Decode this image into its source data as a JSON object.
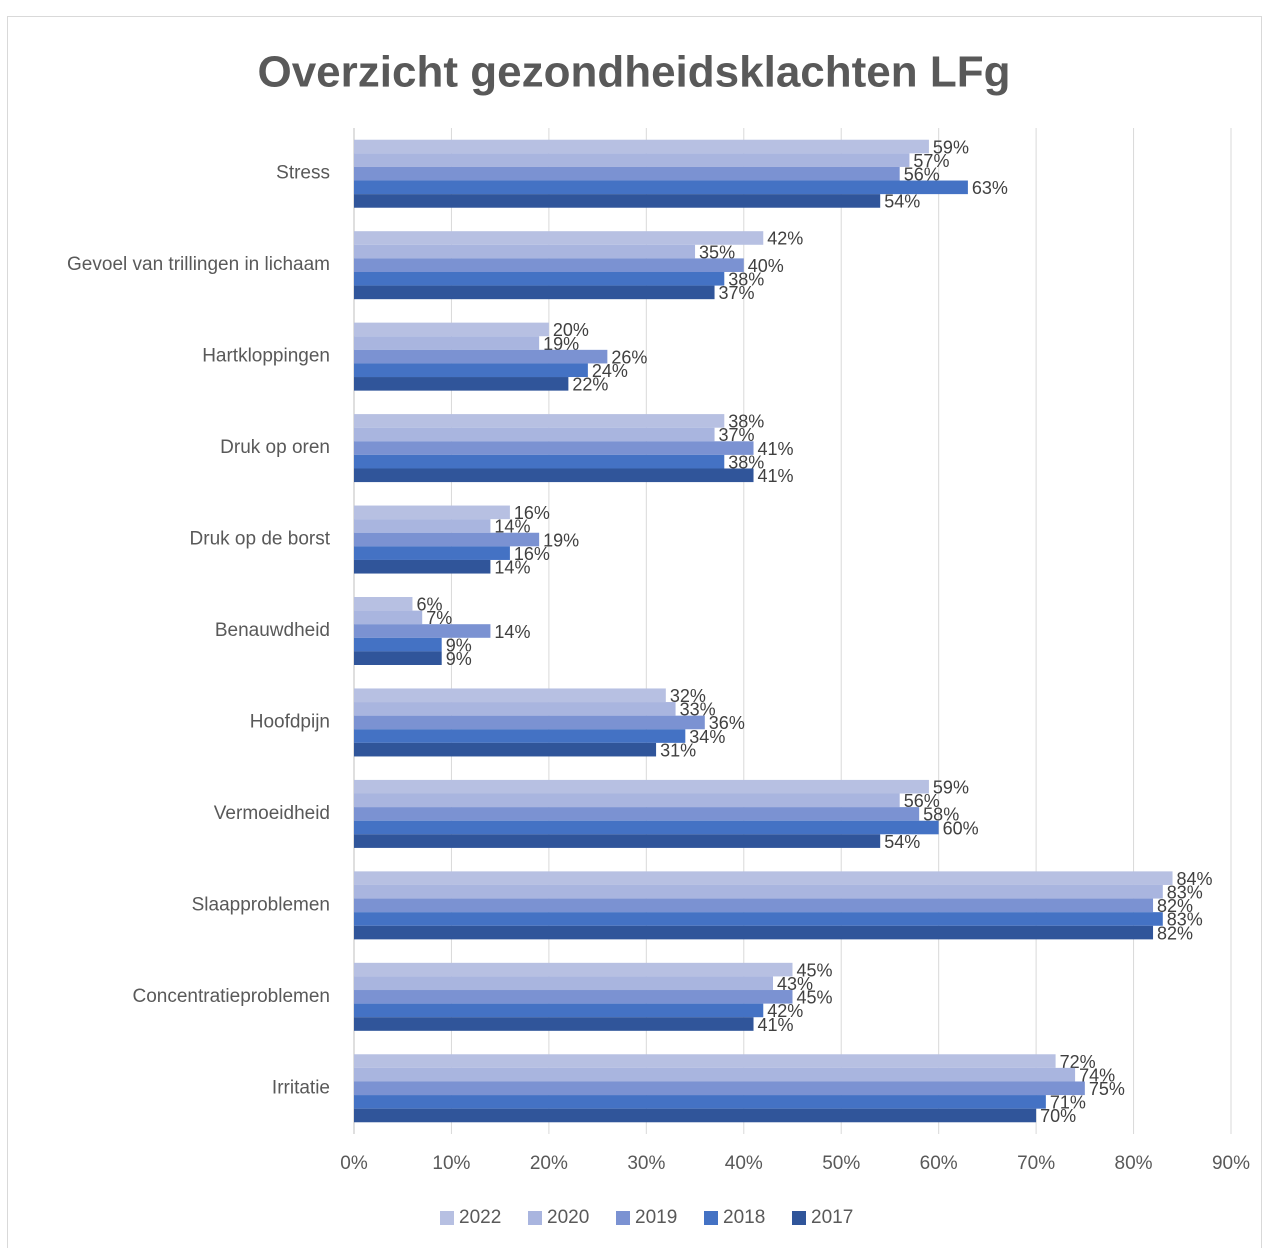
{
  "chart_data": {
    "type": "hbar",
    "title": "Overzicht gezondheidsklachten  LFg",
    "categories": [
      "Stress",
      "Gevoel van trillingen in lichaam",
      "Hartkloppingen",
      "Druk op oren",
      "Druk op de borst",
      "Benauwdheid",
      "Hoofdpijn",
      "Vermoeidheid",
      "Slaapproblemen",
      "Concentratieproblemen",
      "Irritatie"
    ],
    "series": [
      {
        "name": "2022",
        "color": "#b7c0e2",
        "values": [
          59,
          42,
          20,
          38,
          16,
          6,
          32,
          59,
          84,
          45,
          72
        ],
        "value_labels": [
          "59%",
          "42%",
          "20%",
          "38%",
          "16%",
          "6%",
          "32%",
          "59%",
          "84%",
          "45%",
          "72%"
        ]
      },
      {
        "name": "2020",
        "color": "#a9b5df",
        "values": [
          57,
          35,
          19,
          37,
          14,
          7,
          33,
          56,
          83,
          43,
          74
        ],
        "value_labels": [
          "57%",
          "35%",
          "19%",
          "37%",
          "14%",
          "7%",
          "33%",
          "56%",
          "83%",
          "43%",
          "74%"
        ]
      },
      {
        "name": "2019",
        "color": "#7b92d2",
        "values": [
          56,
          40,
          26,
          41,
          19,
          14,
          36,
          58,
          82,
          45,
          75
        ],
        "value_labels": [
          "56%",
          "40%",
          "26%",
          "41%",
          "19%",
          "14%",
          "36%",
          "58%",
          "82%",
          "45%",
          "75%"
        ]
      },
      {
        "name": "2018",
        "color": "#4472c4",
        "values": [
          63,
          38,
          24,
          38,
          16,
          9,
          34,
          60,
          83,
          42,
          71
        ],
        "value_labels": [
          "63%",
          "38%",
          "24%",
          "38%",
          "16%",
          "9%",
          "34%",
          "60%",
          "83%",
          "42%",
          "71%"
        ]
      },
      {
        "name": "2017",
        "color": "#30559a",
        "values": [
          54,
          37,
          22,
          41,
          14,
          9,
          31,
          54,
          82,
          41,
          70
        ],
        "value_labels": [
          "54%",
          "37%",
          "22%",
          "41%",
          "14%",
          "9%",
          "31%",
          "54%",
          "82%",
          "41%",
          "70%"
        ]
      }
    ],
    "xlim": [
      0,
      90
    ],
    "xticks": [
      {
        "value": 0,
        "label": "0%"
      },
      {
        "value": 10,
        "label": "10%"
      },
      {
        "value": 20,
        "label": "20%"
      },
      {
        "value": 30,
        "label": "30%"
      },
      {
        "value": 40,
        "label": "40%"
      },
      {
        "value": 50,
        "label": "50%"
      },
      {
        "value": 60,
        "label": "60%"
      },
      {
        "value": 70,
        "label": "70%"
      },
      {
        "value": 80,
        "label": "80%"
      },
      {
        "value": 90,
        "label": "90%"
      }
    ],
    "grid": true,
    "legend": "bottom"
  }
}
